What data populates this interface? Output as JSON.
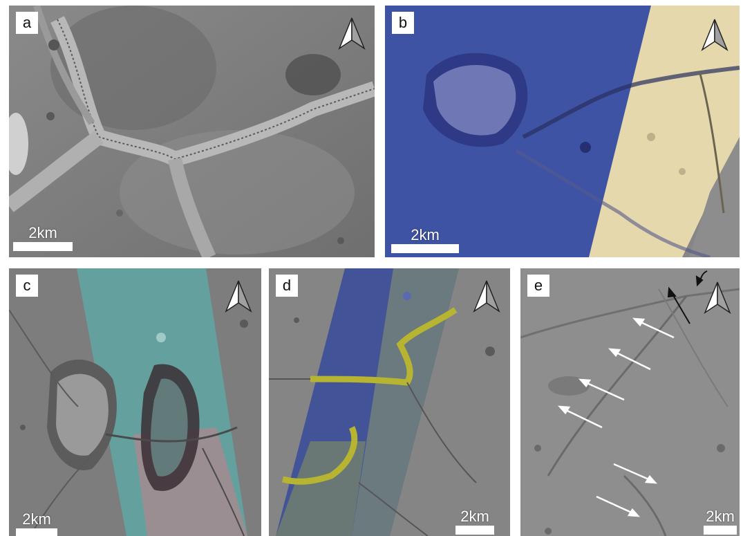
{
  "panels": [
    {
      "label": "a",
      "scale": "2km",
      "north_arrow_icon": "north-arrow-icon"
    },
    {
      "label": "b",
      "scale": "2km",
      "north_arrow_icon": "north-arrow-icon"
    },
    {
      "label": "c",
      "scale": "2km",
      "north_arrow_icon": "north-arrow-icon"
    },
    {
      "label": "d",
      "scale": "2km",
      "north_arrow_icon": "north-arrow-icon"
    },
    {
      "label": "e",
      "scale": "2km",
      "north_arrow_icon": "north-arrow-icon"
    }
  ],
  "colors": {
    "terrain_gray": "#7b7b7b",
    "overlay_blue": "#3a4fa8",
    "overlay_cream": "#e9dcae",
    "overlay_teal": "#5fa7a3",
    "overlay_yellow": "#c9c83a",
    "trough_yellow": "#b7b431"
  }
}
